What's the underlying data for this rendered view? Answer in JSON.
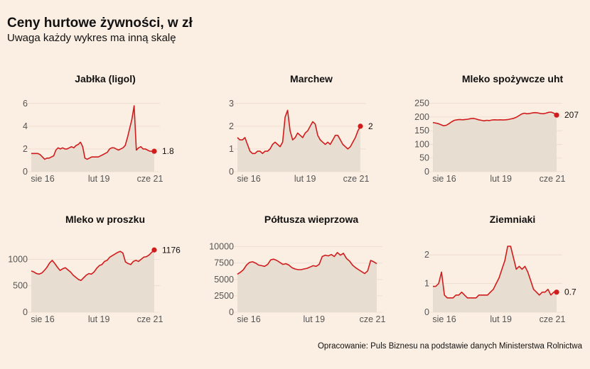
{
  "title": "Ceny hurtowe żywności, w zł",
  "subtitle": "Uwaga każdy wykres ma inną skalę",
  "caption": "Opracowanie: Puls Biznesu na podstawie danych Ministerstwa Rolnictwa",
  "colors": {
    "background": "#fbeee2",
    "line": "#d01c1c",
    "area": "#e8ddd1",
    "grid": "#ecdccd"
  },
  "chart_data": [
    {
      "type": "area",
      "title": "Jabłka (ligol)",
      "x_ticks": [
        "sie 16",
        "lut 19",
        "cze 21"
      ],
      "y_ticks": [
        0,
        2,
        4,
        6
      ],
      "ylim": [
        0,
        6.3
      ],
      "last_label": "1.8",
      "values": [
        1.6,
        1.6,
        1.6,
        1.6,
        1.5,
        1.3,
        1.1,
        1.2,
        1.2,
        1.3,
        1.4,
        1.9,
        2.1,
        2.0,
        2.1,
        2.0,
        2.0,
        2.1,
        2.2,
        2.1,
        2.3,
        2.4,
        2.6,
        2.2,
        1.2,
        1.1,
        1.2,
        1.3,
        1.3,
        1.3,
        1.3,
        1.4,
        1.5,
        1.6,
        1.7,
        2.0,
        2.1,
        2.1,
        2.0,
        1.9,
        2.0,
        2.1,
        2.3,
        3.0,
        3.8,
        4.6,
        5.8,
        1.9,
        2.1,
        2.2,
        2.0,
        2.0,
        1.9,
        1.8,
        1.8,
        1.8
      ]
    },
    {
      "type": "area",
      "title": "Marchew",
      "x_ticks": [
        "sie 16",
        "lut 19",
        "cze 21"
      ],
      "y_ticks": [
        0,
        1,
        2,
        3
      ],
      "ylim": [
        0,
        3.15
      ],
      "last_label": "2",
      "values": [
        1.5,
        1.4,
        1.4,
        1.5,
        1.2,
        0.9,
        0.8,
        0.8,
        0.9,
        0.9,
        0.8,
        0.9,
        0.9,
        1.0,
        1.2,
        1.3,
        1.2,
        1.1,
        1.3,
        2.4,
        2.7,
        1.8,
        1.4,
        1.5,
        1.7,
        1.6,
        1.5,
        1.7,
        1.8,
        2.0,
        2.2,
        2.1,
        1.6,
        1.4,
        1.3,
        1.2,
        1.3,
        1.2,
        1.4,
        1.6,
        1.6,
        1.4,
        1.2,
        1.1,
        1.0,
        1.1,
        1.3,
        1.5,
        1.8,
        2.0
      ]
    },
    {
      "type": "area",
      "title": "Mleko spożywcze uht",
      "x_ticks": [
        "sie 16",
        "lut 19",
        "cze 21"
      ],
      "y_ticks": [
        0,
        50,
        100,
        150,
        200,
        250
      ],
      "ylim": [
        0,
        262
      ],
      "last_label": "207",
      "values": [
        180,
        178,
        176,
        172,
        168,
        170,
        176,
        183,
        188,
        190,
        191,
        190,
        191,
        192,
        194,
        195,
        193,
        190,
        188,
        186,
        188,
        187,
        189,
        190,
        189,
        190,
        189,
        190,
        191,
        193,
        195,
        199,
        205,
        211,
        214,
        212,
        213,
        215,
        216,
        215,
        213,
        212,
        214,
        217,
        218,
        214,
        207
      ]
    },
    {
      "type": "area",
      "title": "Mleko w proszku",
      "x_ticks": [
        "sie 16",
        "lut 19",
        "cze 21"
      ],
      "y_ticks": [
        0,
        500,
        1000
      ],
      "ylim": [
        0,
        1300
      ],
      "last_label": "1176",
      "values": [
        780,
        760,
        730,
        720,
        740,
        790,
        850,
        930,
        980,
        920,
        850,
        790,
        820,
        840,
        800,
        760,
        700,
        660,
        620,
        600,
        650,
        700,
        730,
        720,
        760,
        830,
        880,
        900,
        960,
        980,
        1040,
        1070,
        1100,
        1130,
        1150,
        1120,
        950,
        920,
        900,
        960,
        980,
        960,
        1000,
        1040,
        1050,
        1080,
        1130,
        1176
      ]
    },
    {
      "type": "area",
      "title": "Półtusza wieprzowa",
      "x_ticks": [
        "sie 16",
        "lut 19",
        "cze 21"
      ],
      "y_ticks": [
        0,
        2500,
        5000,
        7500,
        10000
      ],
      "ylim": [
        0,
        10500
      ],
      "last_label": "",
      "values": [
        5800,
        6100,
        6500,
        7200,
        7600,
        7700,
        7500,
        7200,
        7100,
        7000,
        7300,
        8000,
        8100,
        7900,
        7600,
        7300,
        7400,
        7200,
        6800,
        6600,
        6500,
        6500,
        6600,
        6700,
        6900,
        7100,
        7000,
        7300,
        8500,
        8700,
        8600,
        8800,
        8500,
        9100,
        8700,
        9000,
        8200,
        7800,
        7200,
        6800,
        6500,
        6200,
        5900,
        6300,
        7900,
        7700,
        7400
      ]
    },
    {
      "type": "area",
      "title": "Ziemniaki",
      "x_ticks": [
        "sie 16",
        "lut 19",
        "cze 21"
      ],
      "y_ticks": [
        0,
        1,
        2
      ],
      "ylim": [
        0,
        2.4
      ],
      "last_label": "0.7",
      "values": [
        0.9,
        0.9,
        1.0,
        1.4,
        0.6,
        0.5,
        0.5,
        0.5,
        0.6,
        0.6,
        0.7,
        0.6,
        0.5,
        0.5,
        0.5,
        0.5,
        0.6,
        0.6,
        0.6,
        0.6,
        0.7,
        0.8,
        1.0,
        1.2,
        1.5,
        1.8,
        2.3,
        2.3,
        1.9,
        1.5,
        1.6,
        1.5,
        1.6,
        1.4,
        1.1,
        0.8,
        0.7,
        0.6,
        0.7,
        0.7,
        0.8,
        0.6,
        0.7,
        0.7
      ]
    }
  ]
}
